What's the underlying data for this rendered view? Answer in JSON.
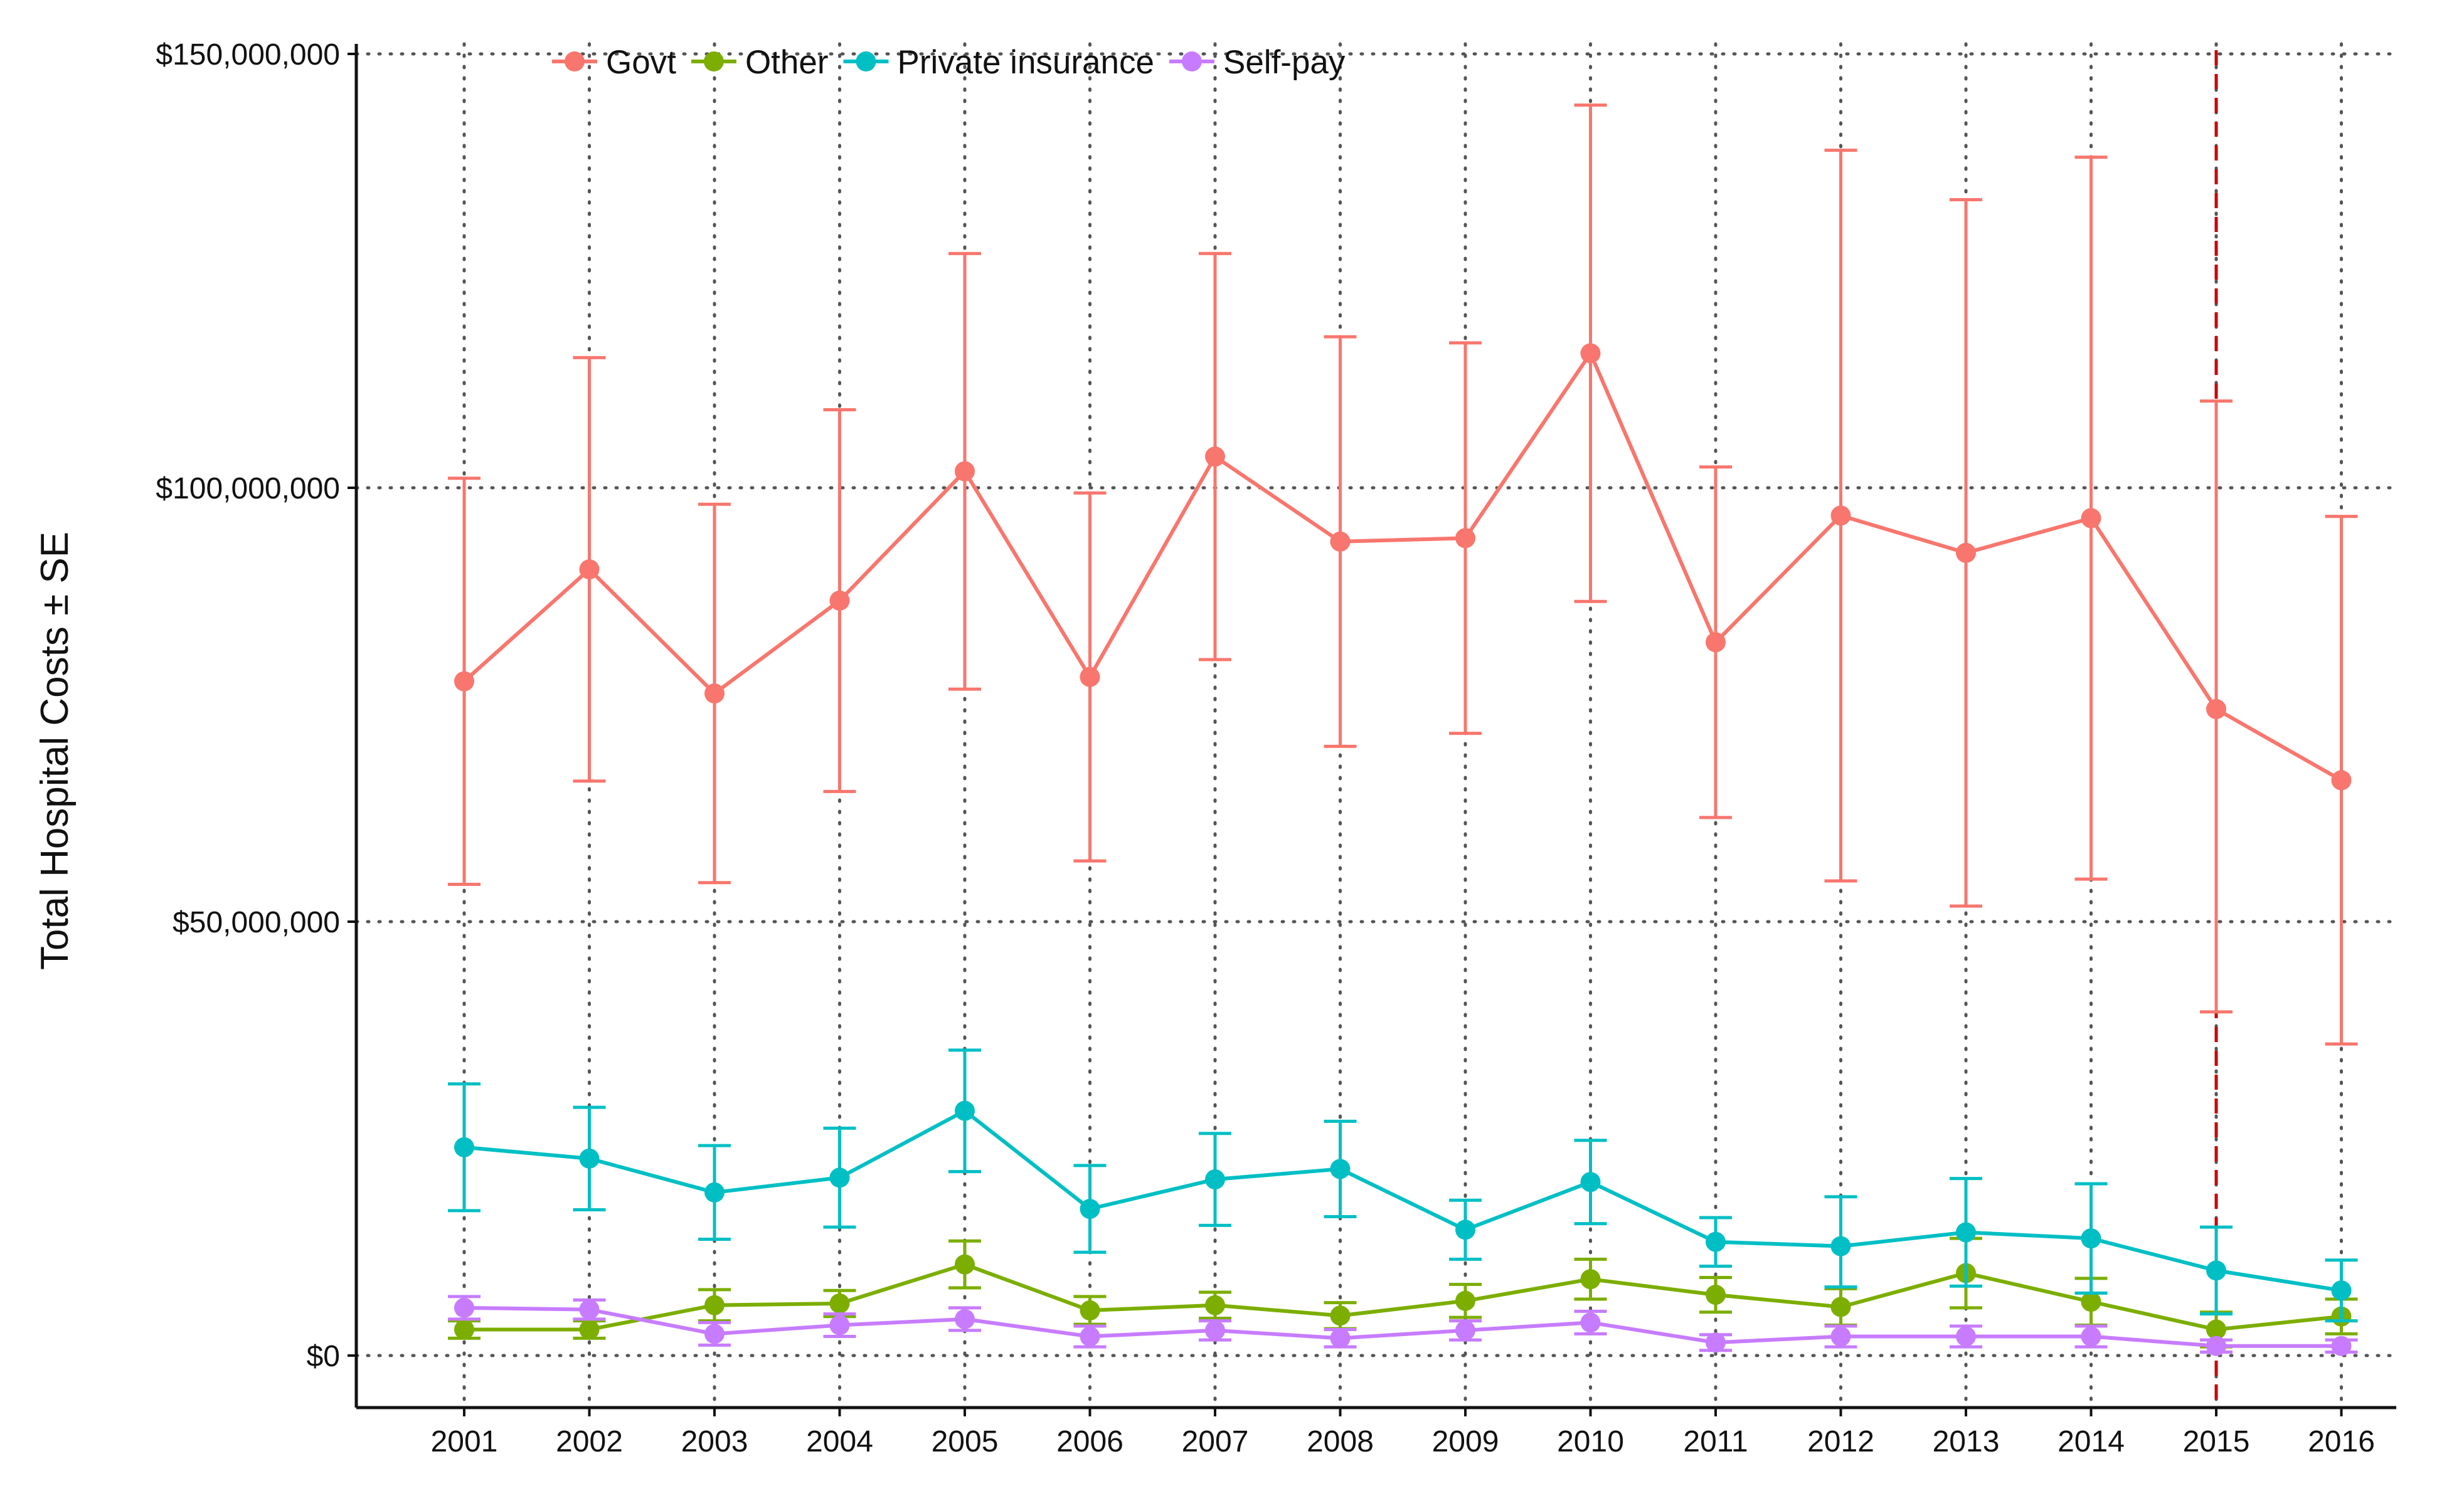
{
  "chart_data": {
    "type": "line",
    "title": "",
    "xlabel": "",
    "ylabel": "Total Hospital Costs ± SE",
    "categories": [
      "2001",
      "2002",
      "2003",
      "2004",
      "2005",
      "2006",
      "2007",
      "2008",
      "2009",
      "2010",
      "2011",
      "2012",
      "2013",
      "2014",
      "2015",
      "2016"
    ],
    "ylim": [
      -6000000,
      151500000
    ],
    "yticks": [
      0,
      50000000,
      100000000,
      150000000
    ],
    "ytick_labels": [
      "$0",
      "$50,000,000",
      "$100,000,000",
      "$150,000,000"
    ],
    "grid": true,
    "legend_position": "top",
    "reference_line": {
      "x": "2015",
      "style": "dashed",
      "color": "#cc0000"
    },
    "series": [
      {
        "name": "Govt",
        "color": "#F8766D",
        "values": [
          77700000,
          90600000,
          76300000,
          87000000,
          101900000,
          78200000,
          103600000,
          93800000,
          94200000,
          115500000,
          82200000,
          96800000,
          92500000,
          96500000,
          74500000,
          66300000
        ],
        "lower": [
          54300000,
          66200000,
          54500000,
          65000000,
          76800000,
          57000000,
          80200000,
          70200000,
          71700000,
          86900000,
          62000000,
          54700000,
          51800000,
          54900000,
          39600000,
          35900000
        ],
        "upper": [
          101100000,
          115000000,
          98100000,
          109000000,
          127000000,
          99400000,
          127000000,
          117400000,
          116700000,
          144100000,
          102400000,
          138900000,
          133200000,
          138100000,
          110000000,
          96700000
        ]
      },
      {
        "name": "Other",
        "color": "#7CAE00",
        "values": [
          3000000,
          3000000,
          5800000,
          6000000,
          10500000,
          5200000,
          5800000,
          4600000,
          6300000,
          8800000,
          7000000,
          5600000,
          9500000,
          6200000,
          3000000,
          4500000
        ],
        "lower": [
          2000000,
          2000000,
          4000000,
          4500000,
          7800000,
          3600000,
          4300000,
          3100000,
          4400000,
          6500000,
          5000000,
          3500000,
          5500000,
          3500000,
          1000000,
          2500000
        ],
        "upper": [
          4000000,
          4000000,
          7600000,
          7500000,
          13200000,
          6800000,
          7300000,
          6100000,
          8200000,
          11100000,
          9000000,
          7700000,
          13500000,
          8900000,
          5000000,
          6500000
        ]
      },
      {
        "name": "Private insurance",
        "color": "#00BFC4",
        "values": [
          24000000,
          22700000,
          18800000,
          20500000,
          28200000,
          16900000,
          20300000,
          21500000,
          14500000,
          20000000,
          13100000,
          12600000,
          14200000,
          13500000,
          9800000,
          7500000
        ],
        "lower": [
          16700000,
          16800000,
          13400000,
          14800000,
          21200000,
          11900000,
          15000000,
          16000000,
          11100000,
          15200000,
          10300000,
          7900000,
          8000000,
          7200000,
          4800000,
          4000000
        ],
        "upper": [
          31300000,
          28600000,
          24200000,
          26200000,
          35200000,
          21900000,
          25600000,
          27000000,
          17900000,
          24800000,
          15900000,
          18300000,
          20400000,
          19800000,
          14800000,
          11000000
        ]
      },
      {
        "name": "Self-pay",
        "color": "#C77CFF",
        "values": [
          5500000,
          5300000,
          2500000,
          3500000,
          4200000,
          2200000,
          2900000,
          2000000,
          2900000,
          3800000,
          1500000,
          2200000,
          2200000,
          2200000,
          1100000,
          1100000
        ],
        "lower": [
          4200000,
          4200000,
          1200000,
          2200000,
          2900000,
          1000000,
          1800000,
          1000000,
          1800000,
          2500000,
          600000,
          1000000,
          1000000,
          1000000,
          400000,
          400000
        ],
        "upper": [
          6800000,
          6400000,
          3800000,
          4800000,
          5500000,
          3400000,
          4000000,
          3000000,
          4000000,
          5100000,
          2400000,
          3400000,
          3400000,
          3400000,
          1800000,
          1800000
        ]
      }
    ]
  }
}
